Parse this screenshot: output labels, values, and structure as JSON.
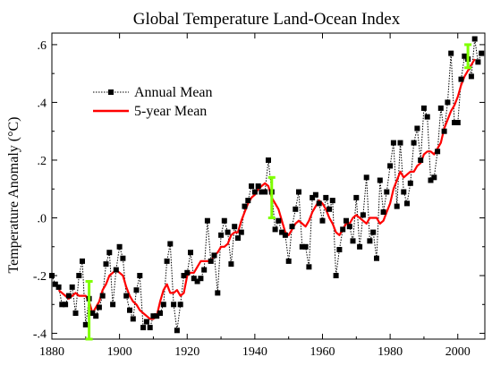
{
  "chart_data": {
    "type": "line",
    "title": "Global Temperature Land-Ocean Index",
    "xlabel": "",
    "ylabel": "Temperature Anomaly (°C)",
    "xlim": [
      1880,
      2008
    ],
    "ylim": [
      -0.42,
      0.64
    ],
    "x_ticks": [
      1880,
      1900,
      1920,
      1940,
      1960,
      1980,
      2000
    ],
    "x_tick_labels": [
      "1880",
      "1900",
      "1920",
      "1940",
      "1960",
      "1980",
      "2000"
    ],
    "y_ticks": [
      -0.4,
      -0.2,
      0.0,
      0.2,
      0.4,
      0.6
    ],
    "y_tick_labels": [
      "-.4",
      "-.2",
      ".0",
      ".2",
      ".4",
      ".6"
    ],
    "legend_position": "top-left",
    "series": [
      {
        "name": "Annual Mean",
        "style": "dotted-line-square-markers",
        "color": "#000000",
        "x": [
          1880,
          1881,
          1882,
          1883,
          1884,
          1885,
          1886,
          1887,
          1888,
          1889,
          1890,
          1891,
          1892,
          1893,
          1894,
          1895,
          1896,
          1897,
          1898,
          1899,
          1900,
          1901,
          1902,
          1903,
          1904,
          1905,
          1906,
          1907,
          1908,
          1909,
          1910,
          1911,
          1912,
          1913,
          1914,
          1915,
          1916,
          1917,
          1918,
          1919,
          1920,
          1921,
          1922,
          1923,
          1924,
          1925,
          1926,
          1927,
          1928,
          1929,
          1930,
          1931,
          1932,
          1933,
          1934,
          1935,
          1936,
          1937,
          1938,
          1939,
          1940,
          1941,
          1942,
          1943,
          1944,
          1945,
          1946,
          1947,
          1948,
          1949,
          1950,
          1951,
          1952,
          1953,
          1954,
          1955,
          1956,
          1957,
          1958,
          1959,
          1960,
          1961,
          1962,
          1963,
          1964,
          1965,
          1966,
          1967,
          1968,
          1969,
          1970,
          1971,
          1972,
          1973,
          1974,
          1975,
          1976,
          1977,
          1978,
          1979,
          1980,
          1981,
          1982,
          1983,
          1984,
          1985,
          1986,
          1987,
          1988,
          1989,
          1990,
          1991,
          1992,
          1993,
          1994,
          1995,
          1996,
          1997,
          1998,
          1999,
          2000,
          2001,
          2002,
          2003,
          2004,
          2005,
          2006,
          2007
        ],
        "values": [
          -0.2,
          -0.23,
          -0.24,
          -0.3,
          -0.3,
          -0.27,
          -0.24,
          -0.33,
          -0.2,
          -0.15,
          -0.37,
          -0.28,
          -0.33,
          -0.34,
          -0.31,
          -0.27,
          -0.16,
          -0.12,
          -0.3,
          -0.18,
          -0.1,
          -0.14,
          -0.27,
          -0.32,
          -0.35,
          -0.25,
          -0.2,
          -0.38,
          -0.36,
          -0.38,
          -0.34,
          -0.34,
          -0.33,
          -0.3,
          -0.15,
          -0.09,
          -0.3,
          -0.39,
          -0.3,
          -0.2,
          -0.19,
          -0.12,
          -0.21,
          -0.22,
          -0.21,
          -0.18,
          -0.01,
          -0.15,
          -0.13,
          -0.26,
          -0.06,
          -0.01,
          -0.05,
          -0.16,
          -0.03,
          -0.07,
          -0.05,
          0.04,
          0.06,
          0.11,
          0.09,
          0.11,
          0.09,
          0.09,
          0.2,
          0.09,
          -0.04,
          -0.01,
          -0.05,
          -0.06,
          -0.15,
          -0.03,
          0.03,
          0.09,
          -0.1,
          -0.1,
          -0.17,
          0.07,
          0.08,
          0.05,
          -0.01,
          0.07,
          0.03,
          0.06,
          -0.2,
          -0.11,
          -0.04,
          -0.01,
          -0.03,
          -0.08,
          0.07,
          -0.1,
          0.01,
          0.14,
          -0.08,
          -0.05,
          -0.14,
          0.13,
          0.02,
          0.09,
          0.18,
          0.26,
          0.04,
          0.26,
          0.09,
          0.05,
          0.12,
          0.26,
          0.31,
          0.2,
          0.38,
          0.35,
          0.13,
          0.14,
          0.23,
          0.38,
          0.3,
          0.4,
          0.57,
          0.33,
          0.33,
          0.48,
          0.56,
          0.55,
          0.49,
          0.62,
          0.54,
          0.57
        ]
      },
      {
        "name": "5-year Mean",
        "style": "solid-line",
        "color": "#ff0000",
        "x": [
          1882,
          1883,
          1884,
          1885,
          1886,
          1887,
          1888,
          1889,
          1890,
          1891,
          1892,
          1893,
          1894,
          1895,
          1896,
          1897,
          1898,
          1899,
          1900,
          1901,
          1902,
          1903,
          1904,
          1905,
          1906,
          1907,
          1908,
          1909,
          1910,
          1911,
          1912,
          1913,
          1914,
          1915,
          1916,
          1917,
          1918,
          1919,
          1920,
          1921,
          1922,
          1923,
          1924,
          1925,
          1926,
          1927,
          1928,
          1929,
          1930,
          1931,
          1932,
          1933,
          1934,
          1935,
          1936,
          1937,
          1938,
          1939,
          1940,
          1941,
          1942,
          1943,
          1944,
          1945,
          1946,
          1947,
          1948,
          1949,
          1950,
          1951,
          1952,
          1953,
          1954,
          1955,
          1956,
          1957,
          1958,
          1959,
          1960,
          1961,
          1962,
          1963,
          1964,
          1965,
          1966,
          1967,
          1968,
          1969,
          1970,
          1971,
          1972,
          1973,
          1974,
          1975,
          1976,
          1977,
          1978,
          1979,
          1980,
          1981,
          1982,
          1983,
          1984,
          1985,
          1986,
          1987,
          1988,
          1989,
          1990,
          1991,
          1992,
          1993,
          1994,
          1995,
          1996,
          1997,
          1998,
          1999,
          2000,
          2001,
          2002,
          2003,
          2004,
          2005
        ],
        "values": [
          -0.25,
          -0.26,
          -0.27,
          -0.28,
          -0.27,
          -0.26,
          -0.27,
          -0.27,
          -0.27,
          -0.29,
          -0.33,
          -0.31,
          -0.29,
          -0.25,
          -0.23,
          -0.2,
          -0.19,
          -0.18,
          -0.19,
          -0.2,
          -0.24,
          -0.27,
          -0.29,
          -0.3,
          -0.32,
          -0.33,
          -0.34,
          -0.35,
          -0.35,
          -0.34,
          -0.29,
          -0.25,
          -0.23,
          -0.26,
          -0.26,
          -0.25,
          -0.27,
          -0.26,
          -0.2,
          -0.19,
          -0.19,
          -0.17,
          -0.15,
          -0.15,
          -0.15,
          -0.15,
          -0.13,
          -0.12,
          -0.1,
          -0.1,
          -0.09,
          -0.06,
          -0.05,
          -0.05,
          -0.01,
          0.02,
          0.05,
          0.07,
          0.08,
          0.1,
          0.11,
          0.12,
          0.11,
          0.07,
          0.05,
          0.03,
          -0.01,
          -0.05,
          -0.06,
          -0.04,
          -0.02,
          -0.01,
          -0.02,
          -0.03,
          -0.01,
          0.02,
          0.04,
          0.06,
          0.05,
          0.03,
          0.0,
          -0.02,
          -0.05,
          -0.06,
          -0.04,
          -0.02,
          -0.02,
          0.0,
          0.01,
          0.0,
          -0.01,
          -0.02,
          0.0,
          0.0,
          0.0,
          -0.02,
          -0.01,
          0.02,
          0.05,
          0.1,
          0.13,
          0.16,
          0.14,
          0.15,
          0.16,
          0.16,
          0.18,
          0.19,
          0.22,
          0.23,
          0.23,
          0.22,
          0.24,
          0.26,
          0.31,
          0.34,
          0.37,
          0.39,
          0.42,
          0.46,
          0.49,
          0.51,
          0.53,
          0.55
        ]
      }
    ],
    "error_bars": [
      {
        "x": 1891,
        "low": -0.42,
        "high": -0.22,
        "color": "#7fff00"
      },
      {
        "x": 1945,
        "low": 0.0,
        "high": 0.14,
        "color": "#7fff00"
      },
      {
        "x": 2003,
        "low": 0.52,
        "high": 0.6,
        "color": "#7fff00"
      }
    ]
  }
}
